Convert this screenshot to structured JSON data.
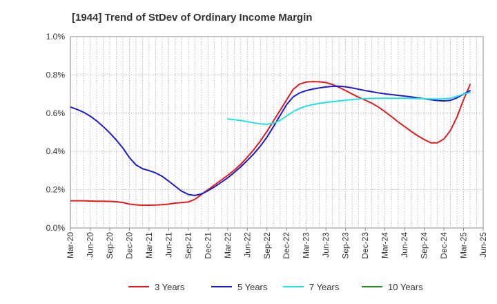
{
  "chart_data": {
    "type": "line",
    "title": "[1944]  Trend of StDev of Ordinary Income Margin",
    "xlabel": "",
    "ylabel": "",
    "x_ticks": [
      "Mar-20",
      "Jun-20",
      "Sep-20",
      "Dec-20",
      "Mar-21",
      "Jun-21",
      "Sep-21",
      "Dec-21",
      "Mar-22",
      "Jun-22",
      "Sep-22",
      "Dec-22",
      "Mar-23",
      "Jun-23",
      "Sep-23",
      "Dec-23",
      "Mar-24",
      "Jun-24",
      "Sep-24",
      "Dec-24",
      "Mar-25",
      "Jun-25"
    ],
    "y_ticks": [
      "0.0%",
      "0.2%",
      "0.4%",
      "0.6%",
      "0.8%",
      "1.0%"
    ],
    "ylim": [
      0,
      1.0
    ],
    "y_unit": "%",
    "grid": true,
    "legend_position": "bottom",
    "series": [
      {
        "name": "3 Years",
        "color": "#e31a1c",
        "points": [
          [
            "Mar-20",
            0.142
          ],
          [
            "Apr-20",
            0.142
          ],
          [
            "May-20",
            0.142
          ],
          [
            "Jun-20",
            0.141
          ],
          [
            "Jul-20",
            0.14
          ],
          [
            "Aug-20",
            0.14
          ],
          [
            "Sep-20",
            0.139
          ],
          [
            "Oct-20",
            0.137
          ],
          [
            "Nov-20",
            0.133
          ],
          [
            "Dec-20",
            0.125
          ],
          [
            "Jan-21",
            0.121
          ],
          [
            "Feb-21",
            0.119
          ],
          [
            "Mar-21",
            0.119
          ],
          [
            "Apr-21",
            0.12
          ],
          [
            "May-21",
            0.122
          ],
          [
            "Jun-21",
            0.125
          ],
          [
            "Jul-21",
            0.13
          ],
          [
            "Aug-21",
            0.133
          ],
          [
            "Sep-21",
            0.136
          ],
          [
            "Oct-21",
            0.15
          ],
          [
            "Nov-21",
            0.175
          ],
          [
            "Dec-21",
            0.2
          ],
          [
            "Jan-22",
            0.225
          ],
          [
            "Feb-22",
            0.25
          ],
          [
            "Mar-22",
            0.275
          ],
          [
            "Apr-22",
            0.302
          ],
          [
            "May-22",
            0.333
          ],
          [
            "Jun-22",
            0.37
          ],
          [
            "Jul-22",
            0.41
          ],
          [
            "Aug-22",
            0.455
          ],
          [
            "Sep-22",
            0.505
          ],
          [
            "Oct-22",
            0.56
          ],
          [
            "Nov-22",
            0.615
          ],
          [
            "Dec-22",
            0.67
          ],
          [
            "Jan-23",
            0.725
          ],
          [
            "Feb-23",
            0.752
          ],
          [
            "Mar-23",
            0.763
          ],
          [
            "Apr-23",
            0.765
          ],
          [
            "May-23",
            0.764
          ],
          [
            "Jun-23",
            0.76
          ],
          [
            "Jul-23",
            0.75
          ],
          [
            "Aug-23",
            0.735
          ],
          [
            "Sep-23",
            0.718
          ],
          [
            "Oct-23",
            0.7
          ],
          [
            "Nov-23",
            0.683
          ],
          [
            "Dec-23",
            0.668
          ],
          [
            "Jan-24",
            0.652
          ],
          [
            "Feb-24",
            0.632
          ],
          [
            "Mar-24",
            0.608
          ],
          [
            "Apr-24",
            0.582
          ],
          [
            "May-24",
            0.555
          ],
          [
            "Jun-24",
            0.53
          ],
          [
            "Jul-24",
            0.505
          ],
          [
            "Aug-24",
            0.482
          ],
          [
            "Sep-24",
            0.462
          ],
          [
            "Oct-24",
            0.445
          ],
          [
            "Nov-24",
            0.445
          ],
          [
            "Dec-24",
            0.465
          ],
          [
            "Jan-25",
            0.51
          ],
          [
            "Feb-25",
            0.58
          ],
          [
            "Mar-25",
            0.67
          ],
          [
            "Apr-25",
            0.75
          ]
        ]
      },
      {
        "name": "5 Years",
        "color": "#1a1acc",
        "points": [
          [
            "Mar-20",
            0.632
          ],
          [
            "Apr-20",
            0.62
          ],
          [
            "May-20",
            0.605
          ],
          [
            "Jun-20",
            0.585
          ],
          [
            "Jul-20",
            0.56
          ],
          [
            "Aug-20",
            0.53
          ],
          [
            "Sep-20",
            0.497
          ],
          [
            "Oct-20",
            0.46
          ],
          [
            "Nov-20",
            0.418
          ],
          [
            "Dec-20",
            0.368
          ],
          [
            "Jan-21",
            0.33
          ],
          [
            "Feb-21",
            0.31
          ],
          [
            "Mar-21",
            0.3
          ],
          [
            "Apr-21",
            0.288
          ],
          [
            "May-21",
            0.27
          ],
          [
            "Jun-21",
            0.245
          ],
          [
            "Jul-21",
            0.218
          ],
          [
            "Aug-21",
            0.192
          ],
          [
            "Sep-21",
            0.175
          ],
          [
            "Oct-21",
            0.17
          ],
          [
            "Nov-21",
            0.178
          ],
          [
            "Dec-21",
            0.195
          ],
          [
            "Jan-22",
            0.215
          ],
          [
            "Feb-22",
            0.238
          ],
          [
            "Mar-22",
            0.262
          ],
          [
            "Apr-22",
            0.29
          ],
          [
            "May-22",
            0.32
          ],
          [
            "Jun-22",
            0.353
          ],
          [
            "Jul-22",
            0.388
          ],
          [
            "Aug-22",
            0.428
          ],
          [
            "Sep-22",
            0.475
          ],
          [
            "Oct-22",
            0.53
          ],
          [
            "Nov-22",
            0.588
          ],
          [
            "Dec-22",
            0.645
          ],
          [
            "Jan-23",
            0.685
          ],
          [
            "Feb-23",
            0.706
          ],
          [
            "Mar-23",
            0.718
          ],
          [
            "Apr-23",
            0.726
          ],
          [
            "May-23",
            0.732
          ],
          [
            "Jun-23",
            0.737
          ],
          [
            "Jul-23",
            0.74
          ],
          [
            "Aug-23",
            0.741
          ],
          [
            "Sep-23",
            0.738
          ],
          [
            "Oct-23",
            0.732
          ],
          [
            "Nov-23",
            0.725
          ],
          [
            "Dec-23",
            0.718
          ],
          [
            "Jan-24",
            0.712
          ],
          [
            "Feb-24",
            0.706
          ],
          [
            "Mar-24",
            0.701
          ],
          [
            "Apr-24",
            0.697
          ],
          [
            "May-24",
            0.693
          ],
          [
            "Jun-24",
            0.689
          ],
          [
            "Jul-24",
            0.685
          ],
          [
            "Aug-24",
            0.68
          ],
          [
            "Sep-24",
            0.675
          ],
          [
            "Oct-24",
            0.67
          ],
          [
            "Nov-24",
            0.666
          ],
          [
            "Dec-24",
            0.664
          ],
          [
            "Jan-25",
            0.667
          ],
          [
            "Feb-25",
            0.68
          ],
          [
            "Mar-25",
            0.7
          ],
          [
            "Apr-25",
            0.718
          ]
        ]
      },
      {
        "name": "7 Years",
        "color": "#26e0e0",
        "points": [
          [
            "Mar-22",
            0.57
          ],
          [
            "Apr-22",
            0.566
          ],
          [
            "May-22",
            0.562
          ],
          [
            "Jun-22",
            0.556
          ],
          [
            "Jul-22",
            0.549
          ],
          [
            "Aug-22",
            0.544
          ],
          [
            "Sep-22",
            0.542
          ],
          [
            "Oct-22",
            0.548
          ],
          [
            "Nov-22",
            0.562
          ],
          [
            "Dec-22",
            0.585
          ],
          [
            "Jan-23",
            0.608
          ],
          [
            "Feb-23",
            0.625
          ],
          [
            "Mar-23",
            0.637
          ],
          [
            "Apr-23",
            0.645
          ],
          [
            "May-23",
            0.651
          ],
          [
            "Jun-23",
            0.656
          ],
          [
            "Jul-23",
            0.66
          ],
          [
            "Aug-23",
            0.664
          ],
          [
            "Sep-23",
            0.668
          ],
          [
            "Oct-23",
            0.671
          ],
          [
            "Nov-23",
            0.674
          ],
          [
            "Dec-23",
            0.676
          ],
          [
            "Jan-24",
            0.677
          ],
          [
            "Feb-24",
            0.678
          ],
          [
            "Mar-24",
            0.678
          ],
          [
            "Apr-24",
            0.678
          ],
          [
            "May-24",
            0.678
          ],
          [
            "Jun-24",
            0.678
          ],
          [
            "Jul-24",
            0.677
          ],
          [
            "Aug-24",
            0.676
          ],
          [
            "Sep-24",
            0.675
          ],
          [
            "Oct-24",
            0.674
          ],
          [
            "Nov-24",
            0.674
          ],
          [
            "Dec-24",
            0.675
          ],
          [
            "Jan-25",
            0.678
          ],
          [
            "Feb-25",
            0.688
          ],
          [
            "Mar-25",
            0.7
          ],
          [
            "Apr-25",
            0.708
          ]
        ]
      },
      {
        "name": "10 Years",
        "color": "#228b22",
        "points": []
      }
    ]
  }
}
